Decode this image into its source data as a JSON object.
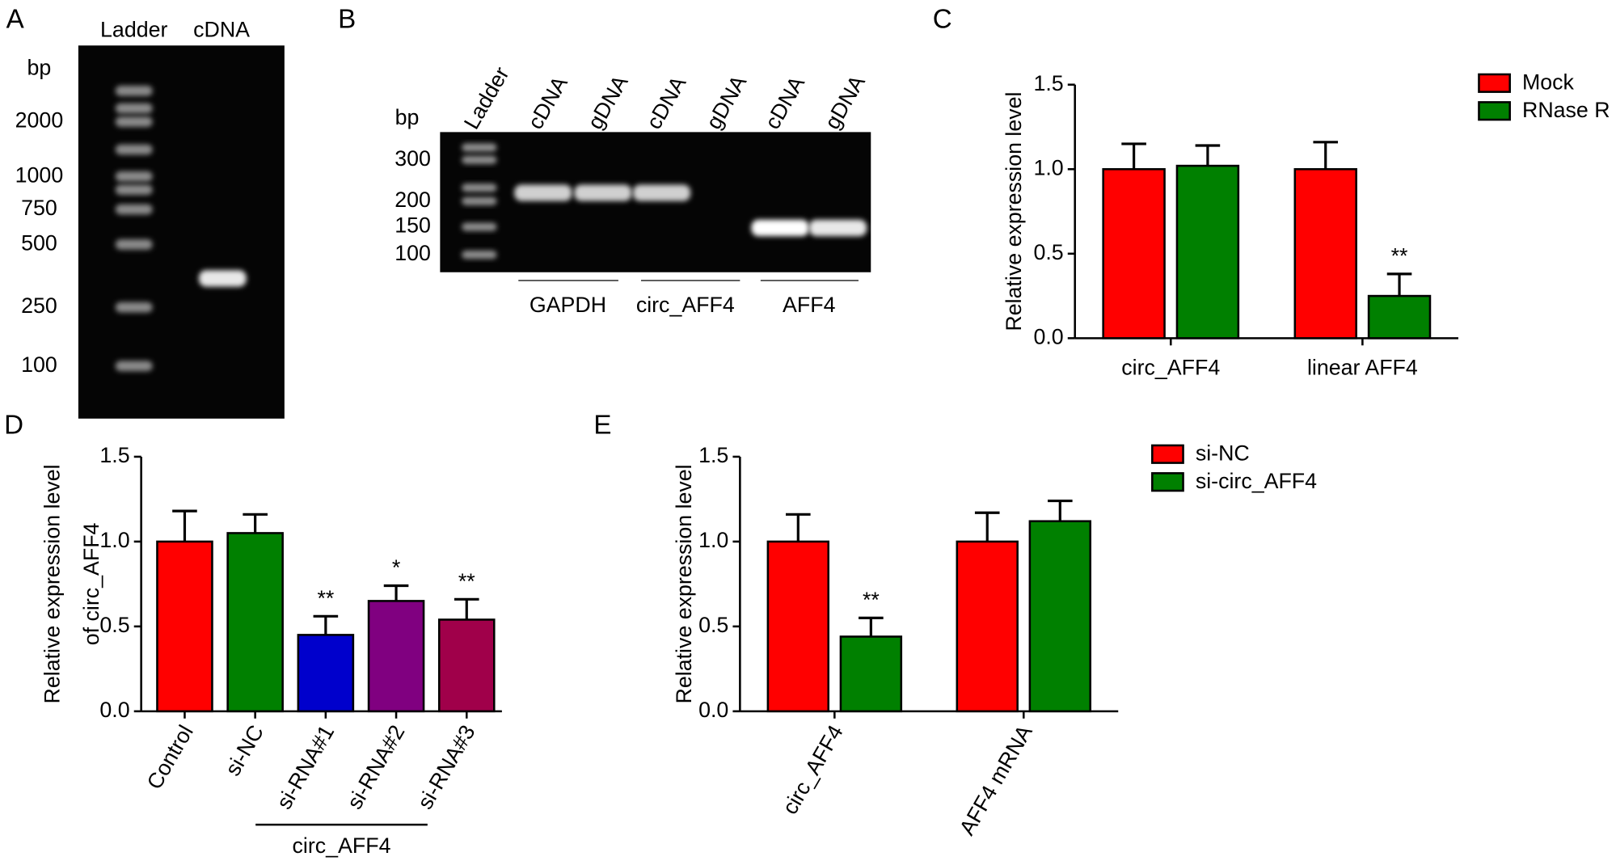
{
  "gels": [
    {
      "panel": "A",
      "unit": "bp",
      "lanes": [
        "Ladder",
        "cDNA"
      ],
      "markers": [
        "2000",
        "1000",
        "750",
        "500",
        "250",
        "100"
      ]
    },
    {
      "panel": "B",
      "unit": "bp",
      "lanes": [
        "Ladder",
        "cDNA",
        "gDNA",
        "cDNA",
        "gDNA",
        "cDNA",
        "gDNA"
      ],
      "markers": [
        "300",
        "200",
        "150",
        "100"
      ],
      "genes": [
        "GAPDH",
        "circ_AFF4",
        "AFF4"
      ]
    }
  ],
  "chart_data": [
    {
      "panel": "C",
      "type": "bar",
      "ylabel": "Relative expression level",
      "categories": [
        "circ_AFF4",
        "linear AFF4"
      ],
      "series": [
        {
          "name": "Mock",
          "color": "#ff0000",
          "values": [
            1.0,
            1.0
          ],
          "errors": [
            0.15,
            0.16
          ],
          "significance": [
            null,
            null
          ]
        },
        {
          "name": "RNase R",
          "color": "#008000",
          "values": [
            1.02,
            0.25
          ],
          "errors": [
            0.12,
            0.13
          ],
          "significance": [
            null,
            "**"
          ]
        }
      ],
      "ylim": [
        0,
        1.5
      ],
      "yticks": [
        {
          "value": 0,
          "label": "0.0"
        },
        {
          "value": 0.5,
          "label": "0.5"
        },
        {
          "value": 1,
          "label": "1.0"
        },
        {
          "value": 1.5,
          "label": "1.5"
        }
      ],
      "legend": "right"
    },
    {
      "panel": "D",
      "type": "bar",
      "ylabel": [
        "Relative expression level",
        "of circ_AFF4"
      ],
      "categories": [
        "Control",
        "si-NC",
        "si-RNA#1",
        "si-RNA#2",
        "si-RNA#3"
      ],
      "values": [
        1.0,
        1.05,
        0.45,
        0.65,
        0.54
      ],
      "errors": [
        0.18,
        0.11,
        0.11,
        0.09,
        0.12
      ],
      "colors": [
        "#ff0000",
        "#008000",
        "#0000cc",
        "#800080",
        "#a0004a"
      ],
      "significance": [
        null,
        null,
        "**",
        "*",
        "**"
      ],
      "bracket_label": "circ_AFF4",
      "ylim": [
        0,
        1.5
      ],
      "yticks": [
        {
          "value": 0,
          "label": "0.0"
        },
        {
          "value": 0.5,
          "label": "0.5"
        },
        {
          "value": 1,
          "label": "1.0"
        },
        {
          "value": 1.5,
          "label": "1.5"
        }
      ],
      "xtick_rotation": -60
    },
    {
      "panel": "E",
      "type": "bar",
      "ylabel": "Relative expression level",
      "categories": [
        "circ_AFF4",
        "AFF4 mRNA"
      ],
      "series": [
        {
          "name": "si-NC",
          "color": "#ff0000",
          "values": [
            1.0,
            1.0
          ],
          "errors": [
            0.16,
            0.17
          ],
          "significance": [
            null,
            null
          ]
        },
        {
          "name": "si-circ_AFF4",
          "color": "#008000",
          "values": [
            0.44,
            1.12
          ],
          "errors": [
            0.11,
            0.12
          ],
          "significance": [
            "**",
            null
          ]
        }
      ],
      "ylim": [
        0,
        1.5
      ],
      "yticks": [
        {
          "value": 0,
          "label": "0.0"
        },
        {
          "value": 0.5,
          "label": "0.5"
        },
        {
          "value": 1,
          "label": "1.0"
        },
        {
          "value": 1.5,
          "label": "1.5"
        }
      ],
      "xtick_rotation": -60,
      "legend": "right"
    }
  ]
}
